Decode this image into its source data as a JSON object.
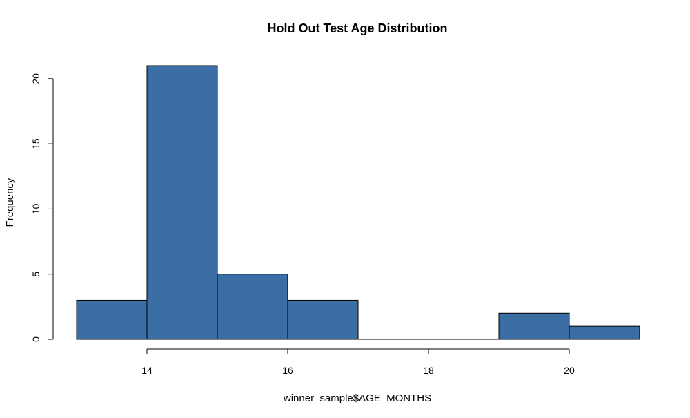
{
  "chart_data": {
    "type": "bar",
    "title": "Hold Out Test Age Distribution",
    "xlabel": "winner_sample$AGE_MONTHS",
    "ylabel": "Frequency",
    "bins": [
      {
        "start": 13,
        "end": 14,
        "count": 3
      },
      {
        "start": 14,
        "end": 15,
        "count": 21
      },
      {
        "start": 15,
        "end": 16,
        "count": 5
      },
      {
        "start": 16,
        "end": 17,
        "count": 3
      },
      {
        "start": 17,
        "end": 18,
        "count": 0
      },
      {
        "start": 18,
        "end": 19,
        "count": 0
      },
      {
        "start": 19,
        "end": 20,
        "count": 2
      },
      {
        "start": 20,
        "end": 21,
        "count": 1
      }
    ],
    "x_ticks": [
      14,
      16,
      18,
      20
    ],
    "y_ticks": [
      0,
      5,
      10,
      15,
      20
    ],
    "xlim": [
      13,
      21
    ],
    "ylim": [
      0,
      21
    ],
    "bar_color": "#3a6ea5",
    "grid": false
  }
}
